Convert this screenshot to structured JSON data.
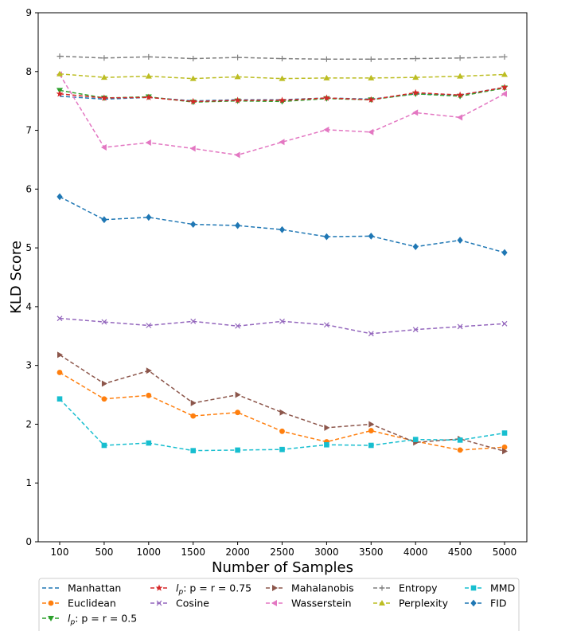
{
  "chart_data": {
    "type": "line",
    "title": "",
    "xlabel": "Number of Samples",
    "ylabel": "KLD Score",
    "x": [
      100,
      500,
      1000,
      1500,
      2000,
      2500,
      3000,
      3500,
      4000,
      4500,
      5000
    ],
    "x_tick_labels": [
      "100",
      "500",
      "1000",
      "1500",
      "2000",
      "2500",
      "3000",
      "3500",
      "4000",
      "4500",
      "5000"
    ],
    "ylim": [
      0,
      9
    ],
    "y_ticks": [
      0,
      1,
      2,
      3,
      4,
      5,
      6,
      7,
      8,
      9
    ],
    "grid": false,
    "legend_placement": "bottom-center, below axes, 5 columns",
    "series": [
      {
        "name": "Manhattan",
        "color": "#1f77b4",
        "marker": "none",
        "values": [
          7.58,
          7.53,
          7.56,
          7.5,
          7.52,
          7.52,
          7.55,
          7.53,
          7.62,
          7.6,
          7.73
        ]
      },
      {
        "name": "Euclidean",
        "color": "#ff7f0e",
        "marker": "circle",
        "values": [
          2.88,
          2.43,
          2.49,
          2.14,
          2.2,
          1.88,
          1.7,
          1.89,
          1.71,
          1.56,
          1.61
        ]
      },
      {
        "name": "l_p: p = r = 0.5",
        "color": "#2ca02c",
        "marker": "triangle-down",
        "values": [
          7.68,
          7.55,
          7.57,
          7.48,
          7.5,
          7.49,
          7.54,
          7.52,
          7.62,
          7.58,
          7.72
        ]
      },
      {
        "name": "l_p: p = r = 0.75",
        "color": "#d62728",
        "marker": "star",
        "values": [
          7.62,
          7.55,
          7.56,
          7.49,
          7.51,
          7.51,
          7.55,
          7.52,
          7.64,
          7.6,
          7.73
        ]
      },
      {
        "name": "Cosine",
        "color": "#9467bd",
        "marker": "x",
        "values": [
          3.8,
          3.74,
          3.68,
          3.75,
          3.67,
          3.75,
          3.69,
          3.54,
          3.61,
          3.66,
          3.71
        ]
      },
      {
        "name": "Mahalanobis",
        "color": "#8c564b",
        "marker": "triangle-right",
        "values": [
          3.18,
          2.69,
          2.91,
          2.36,
          2.5,
          2.2,
          1.94,
          2.0,
          1.69,
          1.75,
          1.54
        ]
      },
      {
        "name": "Wasserstein",
        "color": "#e377c2",
        "marker": "triangle-left",
        "values": [
          7.95,
          6.71,
          6.79,
          6.69,
          6.58,
          6.8,
          7.01,
          6.97,
          7.3,
          7.22,
          7.62
        ]
      },
      {
        "name": "Entropy",
        "color": "#7f7f7f",
        "marker": "plus",
        "values": [
          8.26,
          8.23,
          8.25,
          8.22,
          8.24,
          8.22,
          8.21,
          8.21,
          8.22,
          8.23,
          8.25
        ]
      },
      {
        "name": "Perplexity",
        "color": "#bcbd22",
        "marker": "triangle-up",
        "values": [
          7.96,
          7.9,
          7.92,
          7.88,
          7.91,
          7.88,
          7.89,
          7.89,
          7.9,
          7.92,
          7.95
        ]
      },
      {
        "name": "MMD",
        "color": "#17becf",
        "marker": "square",
        "values": [
          2.43,
          1.64,
          1.68,
          1.55,
          1.56,
          1.57,
          1.65,
          1.64,
          1.74,
          1.73,
          1.85
        ]
      },
      {
        "name": "FID",
        "color": "#1f77b4",
        "marker": "diamond",
        "values": [
          5.87,
          5.48,
          5.52,
          5.4,
          5.38,
          5.31,
          5.19,
          5.2,
          5.02,
          5.13,
          4.92
        ]
      }
    ]
  }
}
